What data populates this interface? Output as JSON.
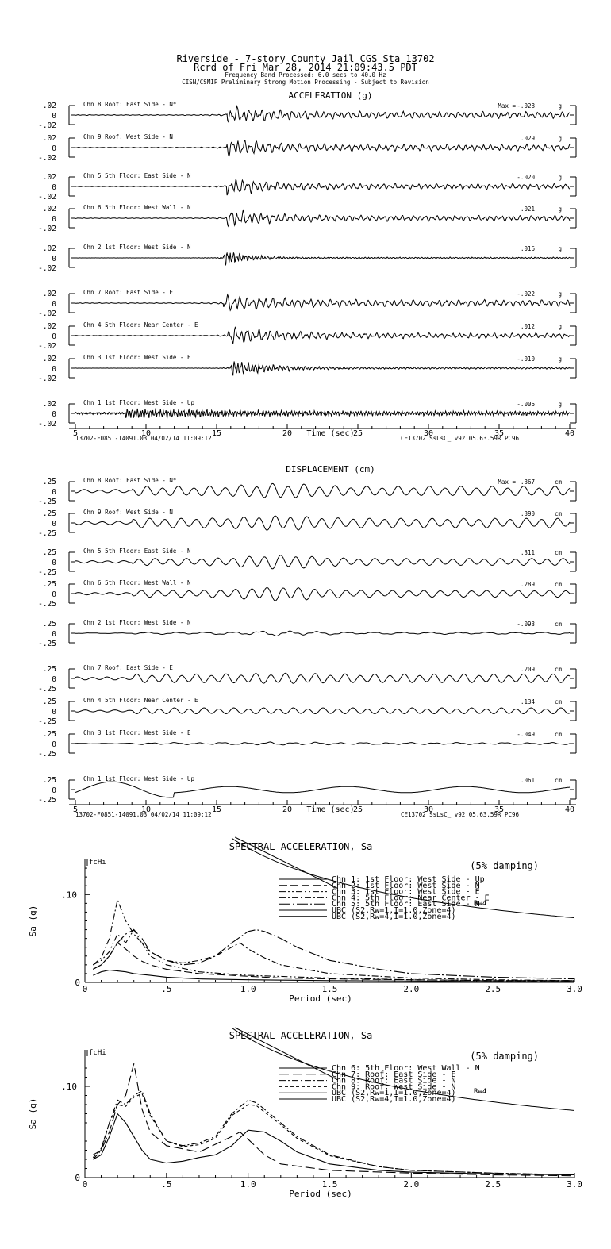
{
  "header": {
    "line1": "Riverside - 7-story County Jail      CGS Sta 13702",
    "line2": "Rcrd of Fri Mar 28, 2014 21:09:43.5 PDT",
    "line3": "Frequency Band Processed: 6.0 secs to 40.0 Hz",
    "line4": "CISN/CSMIP Preliminary Strong Motion Processing - Subject to Revision"
  },
  "colors": {
    "ink": "#000000",
    "background": "#ffffff"
  },
  "chart_data": [
    {
      "type": "line",
      "title": "ACCELERATION (g)",
      "xlabel": "Time (sec)",
      "xlim": [
        5,
        40
      ],
      "x_ticks": [
        "5",
        "10",
        "15",
        "20",
        "25",
        "30",
        "35",
        "40"
      ],
      "y_ticks": [
        ".02",
        "0",
        "-.02"
      ],
      "ylim": [
        -0.02,
        0.02
      ],
      "max_label": "Max =",
      "units": "g",
      "footer_left": "13702-F0851-14091.03 04/02/14 11:09:12",
      "footer_right": "CE13702  SsLsC_  v92.05.63.59R PC96",
      "series": [
        {
          "name": "Chn 8  Roof: East Side - N*",
          "peak": "-.028",
          "onset": 15.7,
          "decay": 3.0,
          "tail": 0.35,
          "freq": 2.3,
          "seed": 8
        },
        {
          "name": "Chn 9  Roof: West Side - N",
          "peak": ".029",
          "onset": 15.7,
          "decay": 3.0,
          "tail": 0.35,
          "freq": 2.3,
          "seed": 9
        },
        {
          "name": "Chn 5  5th Floor: East Side - N",
          "peak": "-.020",
          "onset": 15.7,
          "decay": 2.8,
          "tail": 0.3,
          "freq": 2.4,
          "seed": 5
        },
        {
          "name": "Chn 6  5th Floor: West Wall - N",
          "peak": ".021",
          "onset": 15.7,
          "decay": 2.8,
          "tail": 0.3,
          "freq": 2.4,
          "seed": 6
        },
        {
          "name": "Chn 2  1st Floor: West Side - N",
          "peak": ".016",
          "onset": 15.5,
          "decay": 1.5,
          "tail": 0.08,
          "freq": 4.5,
          "seed": 2
        },
        {
          "name": "Chn 7  Roof: East Side - E",
          "peak": "-.022",
          "onset": 15.5,
          "decay": 3.5,
          "tail": 0.35,
          "freq": 2.2,
          "seed": 7
        },
        {
          "name": "Chn 4  5th Floor: Near Center - E",
          "peak": ".012",
          "onset": 15.8,
          "decay": 3.5,
          "tail": 0.28,
          "freq": 2.4,
          "seed": 4
        },
        {
          "name": "Chn 3  1st Floor: West Side - E",
          "peak": "-.010",
          "onset": 16.0,
          "decay": 2.5,
          "tail": 0.1,
          "freq": 4.0,
          "seed": 3
        },
        {
          "name": "Chn 1  1st Floor: West Side - Up",
          "peak": "-.006",
          "onset": 9.0,
          "decay": 4.0,
          "tail": 0.12,
          "freq": 5.5,
          "seed": 1
        }
      ]
    },
    {
      "type": "line",
      "title": "DISPLACEMENT (cm)",
      "xlabel": "Time (sec)",
      "xlim": [
        5,
        40
      ],
      "x_ticks": [
        "5",
        "10",
        "15",
        "20",
        "25",
        "30",
        "35",
        "40"
      ],
      "y_ticks": [
        ".25",
        "0",
        "-.25"
      ],
      "ylim": [
        -0.25,
        0.25
      ],
      "max_label": "Max =",
      "units": "cm",
      "footer_left": "13702-F0851-14091.03 04/02/14 11:09:12",
      "footer_right": "CE13702  SsLsC_  v92.05.63.59R PC96",
      "series": [
        {
          "name": "Chn 8  Roof: East Side - N*",
          "peak": ".367",
          "amp": 0.85,
          "tail": 0.55,
          "freq": 0.9,
          "seed": 8
        },
        {
          "name": "Chn 9  Roof: West Side - N",
          "peak": ".390",
          "amp": 0.85,
          "tail": 0.55,
          "freq": 0.9,
          "seed": 9
        },
        {
          "name": "Chn 5  5th Floor: East Side - N",
          "peak": ".311",
          "amp": 0.8,
          "tail": 0.4,
          "freq": 0.9,
          "seed": 5
        },
        {
          "name": "Chn 6  5th Floor: West Wall - N",
          "peak": ".289",
          "amp": 0.8,
          "tail": 0.4,
          "freq": 0.9,
          "seed": 6
        },
        {
          "name": "Chn 2  1st Floor: West Side - N",
          "peak": "-.093",
          "amp": 0.25,
          "tail": 0.1,
          "freq": 0.5,
          "seed": 2
        },
        {
          "name": "Chn 7  Roof: East Side - E",
          "peak": ".209",
          "amp": 0.6,
          "tail": 0.5,
          "freq": 0.95,
          "seed": 7
        },
        {
          "name": "Chn 4  5th Floor: Near Center - E",
          "peak": ".134",
          "amp": 0.35,
          "tail": 0.35,
          "freq": 0.95,
          "seed": 4
        },
        {
          "name": "Chn 3  1st Floor: West Side - E",
          "peak": "-.049",
          "amp": 0.15,
          "tail": 0.1,
          "freq": 0.6,
          "seed": 3
        },
        {
          "name": "Chn 1  1st Floor: West Side - Up",
          "peak": ".061",
          "amp": 0.14,
          "tail": 0.08,
          "freq": 0.2,
          "seed": 1
        }
      ]
    },
    {
      "type": "line",
      "title": "SPECTRAL ACCELERATION, Sa",
      "xlabel": "Period (sec)",
      "ylabel": "Sa (g)",
      "xlim": [
        0,
        3.0
      ],
      "ylim": [
        0,
        0.14
      ],
      "x_ticks": [
        "0",
        ".5",
        "1.0",
        "1.5",
        "2.0",
        "2.5",
        "3.0"
      ],
      "y_ticks": [
        ".10"
      ],
      "damping": "(5% damping)",
      "marker": "fcHi",
      "rw_label": "Rw4",
      "series": [
        {
          "name": "Chn 1: 1st Floor: West Side - Up",
          "dash": "",
          "x": [
            0.05,
            0.1,
            0.15,
            0.2,
            0.25,
            0.3,
            0.4,
            0.5,
            0.7,
            1.0,
            1.5,
            2.0,
            2.5,
            3.0
          ],
          "y": [
            0.008,
            0.012,
            0.014,
            0.013,
            0.012,
            0.01,
            0.008,
            0.006,
            0.004,
            0.003,
            0.002,
            0.0015,
            0.001,
            0.001
          ]
        },
        {
          "name": "Chn 2: 1st Floor: West Side - N",
          "dash": "10,4",
          "x": [
            0.05,
            0.1,
            0.15,
            0.2,
            0.25,
            0.3,
            0.35,
            0.4,
            0.5,
            0.7,
            0.9,
            1.0,
            1.2,
            1.5,
            2.0,
            2.5,
            3.0
          ],
          "y": [
            0.015,
            0.02,
            0.03,
            0.045,
            0.038,
            0.03,
            0.024,
            0.02,
            0.015,
            0.01,
            0.008,
            0.007,
            0.005,
            0.004,
            0.003,
            0.002,
            0.002
          ]
        },
        {
          "name": "Chn 3: 1st Floor: West Side - E",
          "dash": "8,3,2,3,2,3",
          "x": [
            0.05,
            0.1,
            0.15,
            0.2,
            0.25,
            0.3,
            0.35,
            0.4,
            0.5,
            0.7,
            1.0,
            1.5,
            2.0,
            2.5,
            3.0
          ],
          "y": [
            0.02,
            0.025,
            0.035,
            0.055,
            0.045,
            0.06,
            0.045,
            0.03,
            0.02,
            0.012,
            0.008,
            0.005,
            0.003,
            0.002,
            0.002
          ]
        },
        {
          "name": "Chn 4: 5th Floor: Near Center - E",
          "dash": "8,3,2,3",
          "x": [
            0.05,
            0.1,
            0.15,
            0.2,
            0.25,
            0.3,
            0.35,
            0.4,
            0.5,
            0.6,
            0.7,
            0.8,
            0.9,
            0.95,
            1.0,
            1.1,
            1.2,
            1.5,
            2.0,
            2.5,
            3.0
          ],
          "y": [
            0.02,
            0.028,
            0.05,
            0.094,
            0.07,
            0.055,
            0.045,
            0.035,
            0.025,
            0.022,
            0.025,
            0.03,
            0.04,
            0.045,
            0.038,
            0.028,
            0.02,
            0.01,
            0.005,
            0.003,
            0.002
          ]
        },
        {
          "name": "Chn 5: 5th Floor: East Side - N",
          "dash": "14,3,2,3",
          "x": [
            0.05,
            0.1,
            0.15,
            0.2,
            0.25,
            0.3,
            0.35,
            0.4,
            0.5,
            0.6,
            0.7,
            0.8,
            0.9,
            1.0,
            1.05,
            1.1,
            1.2,
            1.3,
            1.5,
            1.8,
            2.0,
            2.5,
            3.0
          ],
          "y": [
            0.015,
            0.02,
            0.03,
            0.045,
            0.055,
            0.06,
            0.05,
            0.035,
            0.025,
            0.02,
            0.022,
            0.03,
            0.045,
            0.058,
            0.06,
            0.058,
            0.05,
            0.04,
            0.025,
            0.015,
            0.01,
            0.006,
            0.004
          ]
        },
        {
          "name": "UBC (S2,Rw=1,I=1.0,Zone=4)",
          "dash": "",
          "ubc": 1
        },
        {
          "name": "UBC (S2,Rw=4,I=1.0,Zone=4)",
          "dash": "",
          "ubc": 4
        }
      ]
    },
    {
      "type": "line",
      "title": "SPECTRAL ACCELERATION, Sa",
      "xlabel": "Period (sec)",
      "ylabel": "Sa (g)",
      "xlim": [
        0,
        3.0
      ],
      "ylim": [
        0,
        0.14
      ],
      "x_ticks": [
        "0",
        ".5",
        "1.0",
        "1.5",
        "2.0",
        "2.5",
        "3.0"
      ],
      "y_ticks": [
        ".10"
      ],
      "damping": "(5% damping)",
      "marker": "fcHi",
      "rw_label": "Rw4",
      "series": [
        {
          "name": "Chn 6: 5th Floor: West Wall - N",
          "dash": "",
          "x": [
            0.05,
            0.1,
            0.15,
            0.2,
            0.25,
            0.3,
            0.35,
            0.4,
            0.5,
            0.6,
            0.7,
            0.8,
            0.9,
            1.0,
            1.1,
            1.2,
            1.3,
            1.5,
            1.8,
            2.0,
            2.5,
            3.0
          ],
          "y": [
            0.02,
            0.025,
            0.045,
            0.07,
            0.06,
            0.045,
            0.03,
            0.02,
            0.016,
            0.018,
            0.022,
            0.025,
            0.035,
            0.052,
            0.05,
            0.04,
            0.028,
            0.015,
            0.008,
            0.006,
            0.004,
            0.003
          ]
        },
        {
          "name": "Chn 7: Roof: East Side - E",
          "dash": "12,5",
          "x": [
            0.05,
            0.1,
            0.15,
            0.2,
            0.25,
            0.3,
            0.35,
            0.4,
            0.5,
            0.7,
            0.9,
            0.95,
            1.0,
            1.1,
            1.2,
            1.5,
            2.0,
            2.5,
            3.0
          ],
          "y": [
            0.025,
            0.03,
            0.05,
            0.08,
            0.09,
            0.125,
            0.075,
            0.05,
            0.035,
            0.028,
            0.045,
            0.05,
            0.042,
            0.025,
            0.015,
            0.008,
            0.005,
            0.003,
            0.002
          ]
        },
        {
          "name": "Chn 8: Roof: East Side - N",
          "dash": "8,3,2,3",
          "x": [
            0.05,
            0.1,
            0.15,
            0.2,
            0.25,
            0.3,
            0.35,
            0.4,
            0.5,
            0.6,
            0.7,
            0.8,
            0.9,
            1.0,
            1.05,
            1.1,
            1.2,
            1.3,
            1.5,
            1.8,
            2.0,
            2.5,
            3.0
          ],
          "y": [
            0.02,
            0.03,
            0.06,
            0.085,
            0.08,
            0.09,
            0.095,
            0.07,
            0.04,
            0.035,
            0.038,
            0.045,
            0.07,
            0.085,
            0.082,
            0.075,
            0.06,
            0.045,
            0.025,
            0.012,
            0.008,
            0.005,
            0.003
          ]
        },
        {
          "name": "Chn 9: Roof: West Side - N",
          "dash": "4,3",
          "x": [
            0.05,
            0.1,
            0.15,
            0.2,
            0.25,
            0.3,
            0.35,
            0.4,
            0.5,
            0.6,
            0.7,
            0.8,
            0.9,
            1.0,
            1.05,
            1.1,
            1.2,
            1.3,
            1.5,
            1.8,
            2.0,
            2.5,
            3.0
          ],
          "y": [
            0.022,
            0.032,
            0.06,
            0.08,
            0.078,
            0.088,
            0.092,
            0.068,
            0.04,
            0.034,
            0.036,
            0.043,
            0.068,
            0.08,
            0.079,
            0.072,
            0.058,
            0.043,
            0.024,
            0.012,
            0.008,
            0.005,
            0.003
          ]
        },
        {
          "name": "UBC (S2,Rw=1,I=1.0,Zone=4)",
          "dash": "",
          "ubc": 1
        },
        {
          "name": "UBC (S2,Rw=4,I=1.0,Zone=4)",
          "dash": "",
          "ubc": 4
        }
      ]
    }
  ]
}
